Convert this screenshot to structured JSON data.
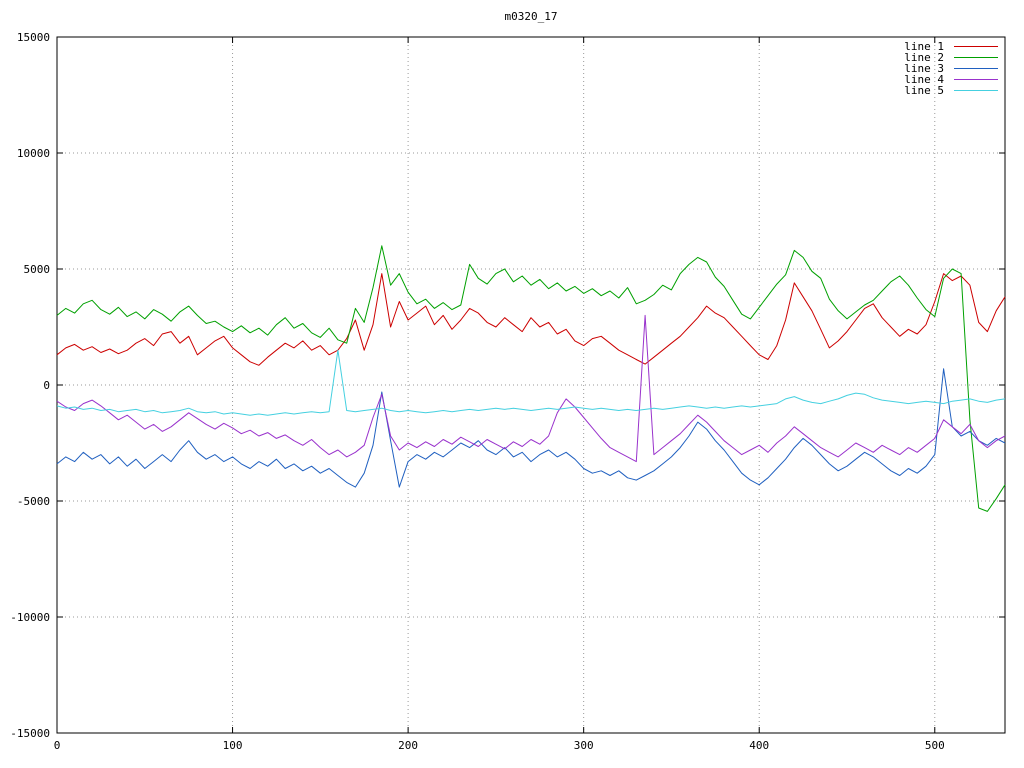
{
  "title": "m0320_17",
  "colors": {
    "background": "#ffffff",
    "border": "#000000",
    "grid": "#9a9a9a"
  },
  "legend": {
    "position": "top-right",
    "entries": [
      "line 1",
      "line 2",
      "line 3",
      "line 4",
      "line 5"
    ]
  },
  "chart_data": {
    "type": "line",
    "title": "m0320_17",
    "xlabel": "",
    "ylabel": "",
    "xlim": [
      0,
      540
    ],
    "ylim": [
      -15000,
      15000
    ],
    "x_ticks": [
      0,
      100,
      200,
      300,
      400,
      500
    ],
    "y_ticks": [
      -15000,
      -10000,
      -5000,
      0,
      5000,
      10000,
      15000
    ],
    "grid": true,
    "legend_position": "top-right",
    "x0": 0,
    "dx": 5,
    "series": [
      {
        "name": "line 1",
        "color": "#cc0000",
        "values": [
          1300,
          1600,
          1750,
          1500,
          1650,
          1400,
          1550,
          1350,
          1500,
          1800,
          2000,
          1700,
          2200,
          2300,
          1800,
          2100,
          1300,
          1600,
          1900,
          2100,
          1600,
          1300,
          1000,
          850,
          1200,
          1500,
          1800,
          1600,
          1900,
          1500,
          1700,
          1300,
          1500,
          2000,
          2800,
          1500,
          2600,
          4800,
          2500,
          3600,
          2800,
          3100,
          3400,
          2600,
          3000,
          2400,
          2800,
          3300,
          3100,
          2700,
          2500,
          2900,
          2600,
          2300,
          2900,
          2500,
          2700,
          2200,
          2400,
          1900,
          1700,
          2000,
          2100,
          1800,
          1500,
          1300,
          1100,
          900,
          1200,
          1500,
          1800,
          2100,
          2500,
          2900,
          3400,
          3100,
          2900,
          2500,
          2100,
          1700,
          1300,
          1100,
          1700,
          2800,
          4400,
          3800,
          3200,
          2400,
          1600,
          1900,
          2300,
          2800,
          3300,
          3500,
          2900,
          2500,
          2100,
          2400,
          2200,
          2600,
          3600,
          4800,
          4500,
          4700,
          4300,
          2700,
          2300,
          3200,
          3800
        ]
      },
      {
        "name": "line 2",
        "color": "#00a000",
        "values": [
          3000,
          3300,
          3100,
          3500,
          3650,
          3250,
          3050,
          3350,
          2950,
          3150,
          2850,
          3250,
          3050,
          2750,
          3150,
          3400,
          3000,
          2650,
          2750,
          2500,
          2300,
          2550,
          2250,
          2450,
          2150,
          2600,
          2900,
          2450,
          2650,
          2250,
          2050,
          2450,
          1950,
          1800,
          3300,
          2700,
          4200,
          6000,
          4300,
          4800,
          4000,
          3500,
          3700,
          3300,
          3550,
          3250,
          3450,
          5200,
          4600,
          4350,
          4800,
          5000,
          4450,
          4700,
          4300,
          4550,
          4150,
          4400,
          4050,
          4250,
          3950,
          4150,
          3850,
          4050,
          3750,
          4200,
          3500,
          3650,
          3900,
          4300,
          4100,
          4800,
          5200,
          5500,
          5300,
          4650,
          4250,
          3650,
          3050,
          2850,
          3350,
          3850,
          4350,
          4750,
          5800,
          5500,
          4900,
          4600,
          3700,
          3200,
          2850,
          3150,
          3450,
          3650,
          4050,
          4450,
          4700,
          4300,
          3750,
          3250,
          2950,
          4600,
          5000,
          4800,
          -1500,
          -5300,
          -5450,
          -4900,
          -4300
        ]
      },
      {
        "name": "line 3",
        "color": "#2060c0",
        "values": [
          -3400,
          -3100,
          -3300,
          -2900,
          -3200,
          -3000,
          -3400,
          -3100,
          -3500,
          -3200,
          -3600,
          -3300,
          -3000,
          -3300,
          -2800,
          -2400,
          -2900,
          -3200,
          -3000,
          -3300,
          -3100,
          -3400,
          -3600,
          -3300,
          -3500,
          -3200,
          -3600,
          -3400,
          -3700,
          -3500,
          -3800,
          -3600,
          -3900,
          -4200,
          -4400,
          -3800,
          -2600,
          -300,
          -2400,
          -4400,
          -3300,
          -3000,
          -3200,
          -2900,
          -3100,
          -2800,
          -2500,
          -2700,
          -2400,
          -2800,
          -3000,
          -2700,
          -3100,
          -2900,
          -3300,
          -3000,
          -2800,
          -3100,
          -2900,
          -3200,
          -3600,
          -3800,
          -3700,
          -3900,
          -3700,
          -4000,
          -4100,
          -3900,
          -3700,
          -3400,
          -3100,
          -2700,
          -2200,
          -1600,
          -1900,
          -2400,
          -2800,
          -3300,
          -3800,
          -4100,
          -4300,
          -4000,
          -3600,
          -3200,
          -2700,
          -2300,
          -2600,
          -3000,
          -3400,
          -3700,
          -3500,
          -3200,
          -2900,
          -3100,
          -3400,
          -3700,
          -3900,
          -3600,
          -3800,
          -3500,
          -3000,
          700,
          -1800,
          -2200,
          -2000,
          -2400,
          -2600,
          -2300,
          -2500
        ]
      },
      {
        "name": "line 4",
        "color": "#9932cc",
        "values": [
          -700,
          -950,
          -1100,
          -800,
          -650,
          -900,
          -1200,
          -1500,
          -1300,
          -1600,
          -1900,
          -1700,
          -2000,
          -1800,
          -1500,
          -1200,
          -1450,
          -1700,
          -1900,
          -1650,
          -1850,
          -2100,
          -1950,
          -2200,
          -2050,
          -2300,
          -2150,
          -2400,
          -2600,
          -2350,
          -2700,
          -3000,
          -2800,
          -3100,
          -2900,
          -2600,
          -1400,
          -400,
          -2200,
          -2800,
          -2500,
          -2700,
          -2450,
          -2650,
          -2350,
          -2550,
          -2250,
          -2450,
          -2650,
          -2350,
          -2550,
          -2750,
          -2450,
          -2650,
          -2350,
          -2550,
          -2200,
          -1200,
          -600,
          -950,
          -1400,
          -1850,
          -2300,
          -2700,
          -2900,
          -3100,
          -3300,
          3000,
          -3000,
          -2700,
          -2400,
          -2100,
          -1700,
          -1300,
          -1600,
          -2000,
          -2400,
          -2700,
          -3000,
          -2800,
          -2600,
          -2900,
          -2500,
          -2200,
          -1800,
          -2100,
          -2400,
          -2700,
          -2900,
          -3100,
          -2800,
          -2500,
          -2700,
          -2900,
          -2600,
          -2800,
          -3000,
          -2700,
          -2900,
          -2600,
          -2300,
          -1500,
          -1800,
          -2100,
          -1700,
          -2400,
          -2700,
          -2400,
          -2200
        ]
      },
      {
        "name": "line 5",
        "color": "#45d0e0",
        "values": [
          -900,
          -1000,
          -950,
          -1050,
          -1000,
          -1100,
          -1050,
          -1150,
          -1100,
          -1050,
          -1150,
          -1100,
          -1200,
          -1150,
          -1100,
          -1000,
          -1150,
          -1200,
          -1150,
          -1250,
          -1200,
          -1250,
          -1300,
          -1250,
          -1300,
          -1250,
          -1200,
          -1250,
          -1200,
          -1150,
          -1200,
          -1150,
          1500,
          -1100,
          -1150,
          -1100,
          -1050,
          -1000,
          -1100,
          -1150,
          -1100,
          -1150,
          -1200,
          -1150,
          -1100,
          -1150,
          -1100,
          -1050,
          -1100,
          -1050,
          -1000,
          -1050,
          -1000,
          -1050,
          -1100,
          -1050,
          -1000,
          -1050,
          -1000,
          -950,
          -1000,
          -1050,
          -1000,
          -1050,
          -1100,
          -1050,
          -1100,
          -1050,
          -1000,
          -1050,
          -1000,
          -950,
          -900,
          -950,
          -1000,
          -950,
          -1000,
          -950,
          -900,
          -950,
          -900,
          -850,
          -800,
          -600,
          -500,
          -650,
          -750,
          -800,
          -700,
          -600,
          -450,
          -350,
          -400,
          -550,
          -650,
          -700,
          -750,
          -800,
          -750,
          -700,
          -750,
          -800,
          -700,
          -650,
          -600,
          -700,
          -750,
          -650,
          -600
        ]
      }
    ]
  }
}
